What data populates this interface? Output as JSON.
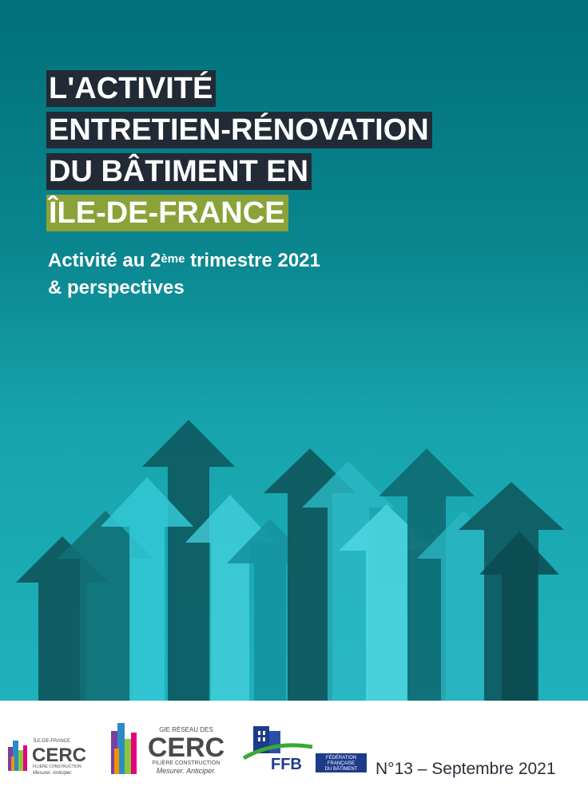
{
  "title": {
    "line1": "L'ACTIVITÉ",
    "line2": "ENTRETIEN-RÉNOVATION",
    "line3": "DU BÂTIMENT EN",
    "line4": "ÎLE-DE-FRANCE"
  },
  "subtitle": {
    "pre": "Activité au 2",
    "sup": "ème",
    "post": " trimestre 2021",
    "line2": "& perspectives"
  },
  "logos": {
    "cerc_small": {
      "top": "ÎLE-DE-FRANCE",
      "name": "CERC",
      "sub": "FILIÈRE CONSTRUCTION",
      "tagline": "Mesurer. Anticiper."
    },
    "cerc_large": {
      "top": "GIE RÉSEAU DES",
      "name": "CERC",
      "sub": "FILIÈRE CONSTRUCTION",
      "tagline": "Mesurer. Anticiper."
    },
    "ffb": {
      "name": "FFB",
      "line1": "FÉDÉRATION",
      "line2": "FRANÇAISE",
      "line3": "DU BÂTIMENT"
    }
  },
  "issue": "N°13 – Septembre 2021",
  "colors": {
    "title_bg": "#222a35",
    "title_highlight": "#8ba238",
    "ffb_blue": "#1e3a8a",
    "ffb_green": "#3aa935"
  }
}
